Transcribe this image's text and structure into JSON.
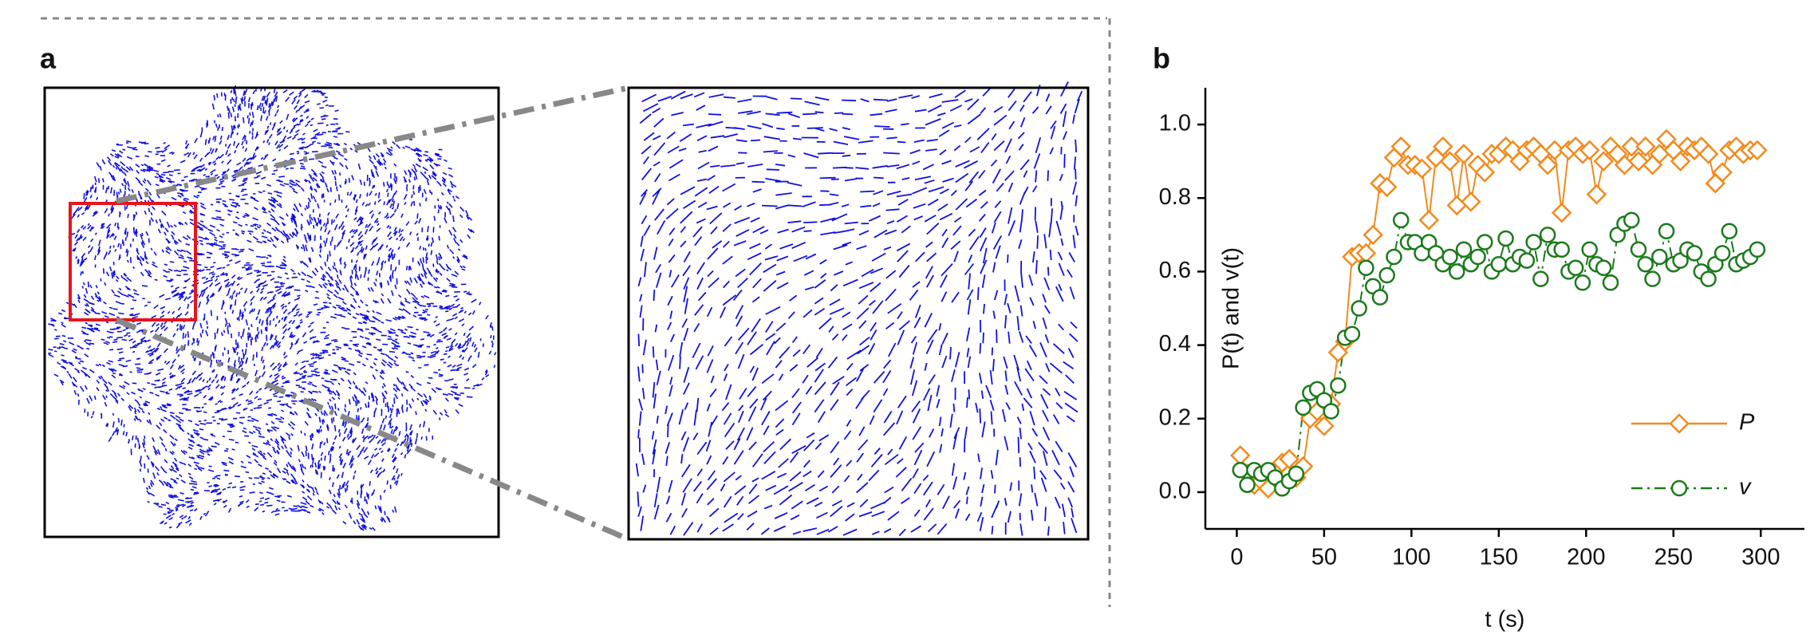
{
  "panel_labels": [
    "a",
    "b"
  ],
  "chart_data": {
    "type": "line",
    "xlabel": "t (s)",
    "ylabel": "P(t) and v(t)",
    "x": [
      2,
      6,
      10,
      14,
      18,
      22,
      26,
      30,
      34,
      38,
      42,
      46,
      50,
      54,
      58,
      62,
      66,
      70,
      74,
      78,
      82,
      86,
      90,
      94,
      98,
      102,
      106,
      110,
      114,
      118,
      122,
      126,
      130,
      134,
      138,
      142,
      146,
      150,
      154,
      158,
      162,
      166,
      170,
      174,
      178,
      182,
      186,
      190,
      194,
      198,
      202,
      206,
      210,
      214,
      218,
      222,
      226,
      230,
      234,
      238,
      242,
      246,
      250,
      254,
      258,
      262,
      266,
      270,
      274,
      278,
      282,
      286,
      290,
      294,
      298
    ],
    "series": [
      {
        "name": "P",
        "color": "#f28a1c",
        "marker": "diamond",
        "linestyle": "solid",
        "values": [
          0.1,
          0.05,
          0.02,
          0.03,
          0.01,
          0.06,
          0.08,
          0.09,
          0.04,
          0.07,
          0.2,
          0.22,
          0.18,
          0.24,
          0.38,
          0.41,
          0.64,
          0.65,
          0.65,
          0.7,
          0.84,
          0.83,
          0.91,
          0.94,
          0.89,
          0.89,
          0.88,
          0.74,
          0.91,
          0.94,
          0.9,
          0.78,
          0.92,
          0.79,
          0.89,
          0.87,
          0.92,
          0.92,
          0.94,
          0.93,
          0.9,
          0.93,
          0.94,
          0.92,
          0.89,
          0.93,
          0.76,
          0.93,
          0.94,
          0.92,
          0.93,
          0.81,
          0.9,
          0.94,
          0.92,
          0.89,
          0.94,
          0.9,
          0.94,
          0.89,
          0.92,
          0.96,
          0.93,
          0.9,
          0.94,
          0.93,
          0.94,
          0.92,
          0.84,
          0.87,
          0.93,
          0.94,
          0.92,
          0.93,
          0.93
        ]
      },
      {
        "name": "v",
        "color": "#1a7a1a",
        "marker": "circle",
        "linestyle": "dashdot",
        "values": [
          0.06,
          0.02,
          0.06,
          0.05,
          0.06,
          0.04,
          0.01,
          0.03,
          0.05,
          0.23,
          0.27,
          0.28,
          0.25,
          0.22,
          0.29,
          0.42,
          0.43,
          0.5,
          0.61,
          0.56,
          0.53,
          0.59,
          0.64,
          0.74,
          0.68,
          0.68,
          0.65,
          0.68,
          0.65,
          0.62,
          0.64,
          0.6,
          0.66,
          0.62,
          0.64,
          0.68,
          0.6,
          0.62,
          0.69,
          0.62,
          0.64,
          0.63,
          0.68,
          0.58,
          0.7,
          0.66,
          0.66,
          0.6,
          0.61,
          0.57,
          0.66,
          0.62,
          0.61,
          0.57,
          0.7,
          0.73,
          0.74,
          0.66,
          0.62,
          0.58,
          0.64,
          0.71,
          0.62,
          0.63,
          0.66,
          0.65,
          0.6,
          0.58,
          0.62,
          0.65,
          0.71,
          0.62,
          0.63,
          0.64,
          0.66
        ]
      }
    ],
    "xlim": [
      -18,
      325
    ],
    "ylim": [
      -0.1,
      1.1
    ],
    "xticks": [
      0,
      50,
      100,
      150,
      200,
      250,
      300
    ],
    "yticks": [
      {
        "value": 0,
        "label": "0.0"
      },
      0.2,
      0.4,
      0.6,
      0.8,
      {
        "value": 1,
        "label": "1.0"
      }
    ],
    "legend": "lower right"
  }
}
